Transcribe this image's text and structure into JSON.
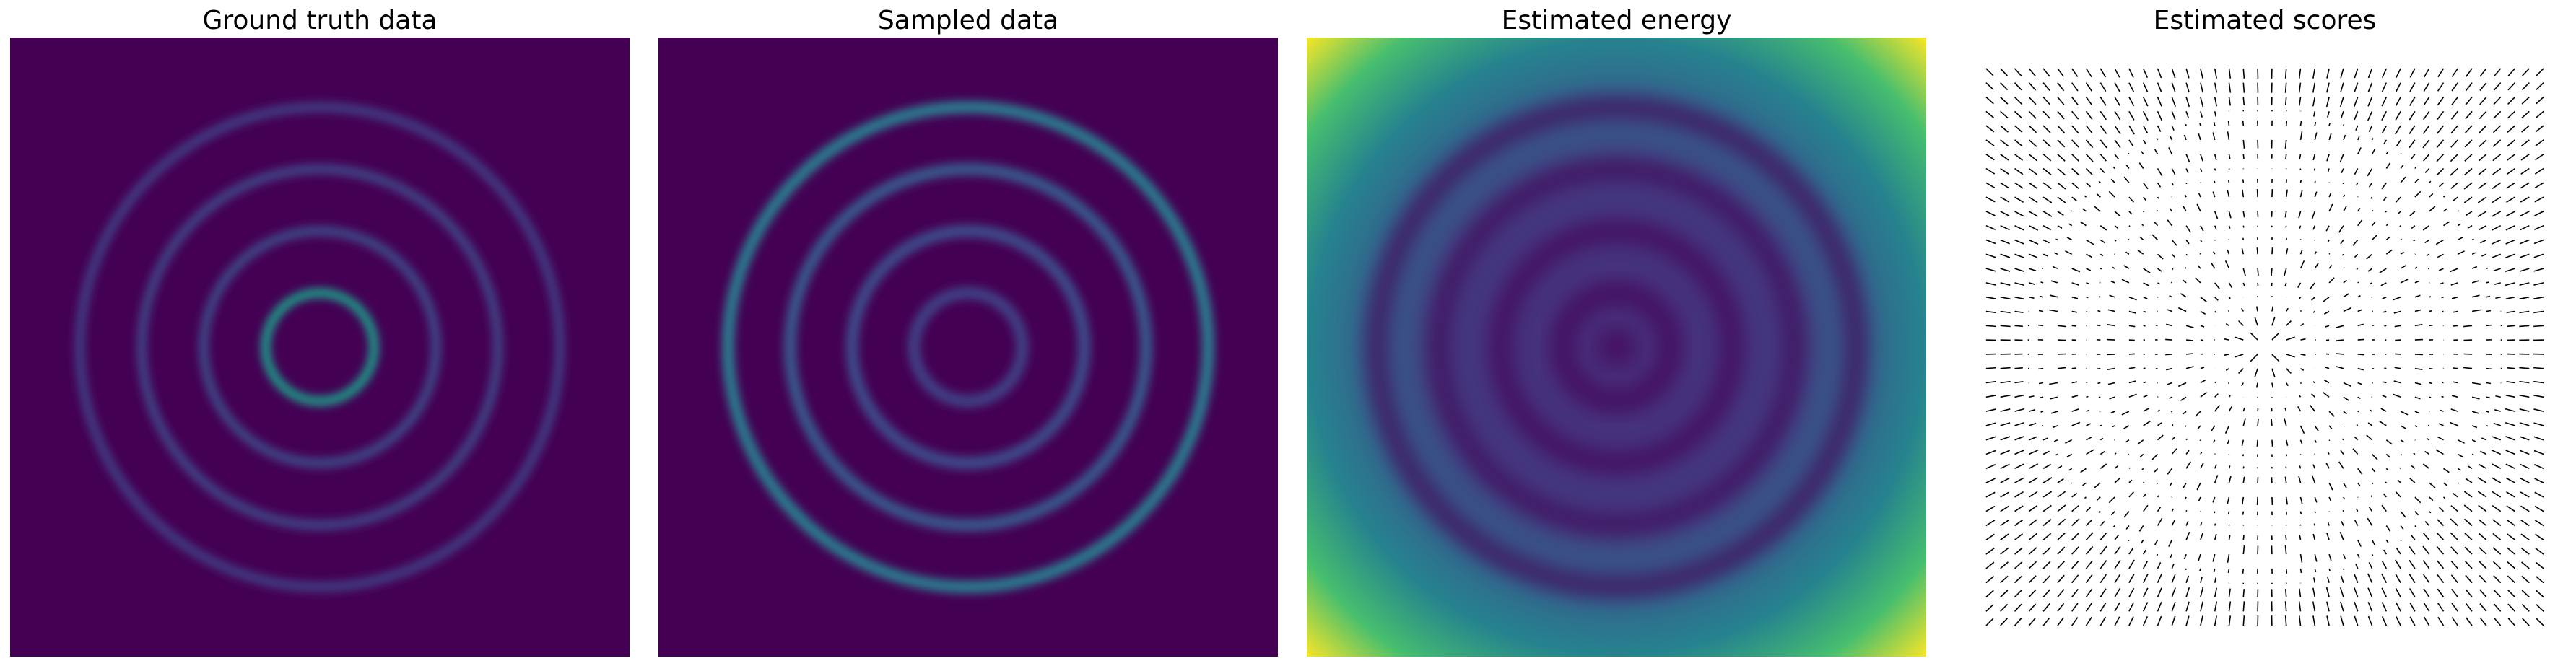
{
  "chart_data": [
    {
      "type": "heatmap",
      "title": "Ground truth data",
      "rings": [
        {
          "radius": 0.7,
          "intensity": 1.0
        },
        {
          "radius": 1.5,
          "intensity": 0.42
        },
        {
          "radius": 2.3,
          "intensity": 0.38
        },
        {
          "radius": 3.1,
          "intensity": 0.34
        }
      ],
      "ring_width": 0.12,
      "xlim": [
        -4,
        4
      ],
      "ylim": [
        -4,
        4
      ],
      "colormap": [
        "#440154",
        "#482878",
        "#3e4a89",
        "#31688e",
        "#26828e",
        "#1f9e89",
        "#35b779",
        "#6ece58",
        "#b5de2b",
        "#fde725"
      ],
      "axes_visible": false
    },
    {
      "type": "heatmap",
      "title": "Sampled data",
      "rings": [
        {
          "radius": 0.7,
          "intensity": 0.35
        },
        {
          "radius": 1.5,
          "intensity": 0.42
        },
        {
          "radius": 2.3,
          "intensity": 0.5
        },
        {
          "radius": 3.1,
          "intensity": 0.75
        }
      ],
      "ring_width": 0.16,
      "xlim": [
        -4,
        4
      ],
      "ylim": [
        -4,
        4
      ],
      "colormap": [
        "#440154",
        "#482878",
        "#3e4a89",
        "#31688e",
        "#26828e",
        "#1f9e89",
        "#35b779",
        "#6ece58",
        "#b5de2b",
        "#fde725"
      ],
      "axes_visible": false
    },
    {
      "type": "heatmap",
      "title": "Estimated energy",
      "energy_minima_radii": [
        0,
        0.7,
        1.5,
        2.3,
        3.1
      ],
      "xlim": [
        -4,
        4
      ],
      "ylim": [
        -4,
        4
      ],
      "colormap": [
        "#440154",
        "#482878",
        "#3e4a89",
        "#31688e",
        "#26828e",
        "#1f9e89",
        "#35b779",
        "#6ece58",
        "#b5de2b",
        "#fde725"
      ],
      "axes_visible": false
    },
    {
      "type": "quiver",
      "title": "Estimated scores",
      "grid_size": 40,
      "xlim": [
        -4,
        4
      ],
      "ylim": [
        -4,
        4
      ],
      "ring_radii": [
        0.7,
        1.5,
        2.3,
        3.1
      ],
      "arrow_color": "#000000",
      "axes_visible": false
    }
  ]
}
